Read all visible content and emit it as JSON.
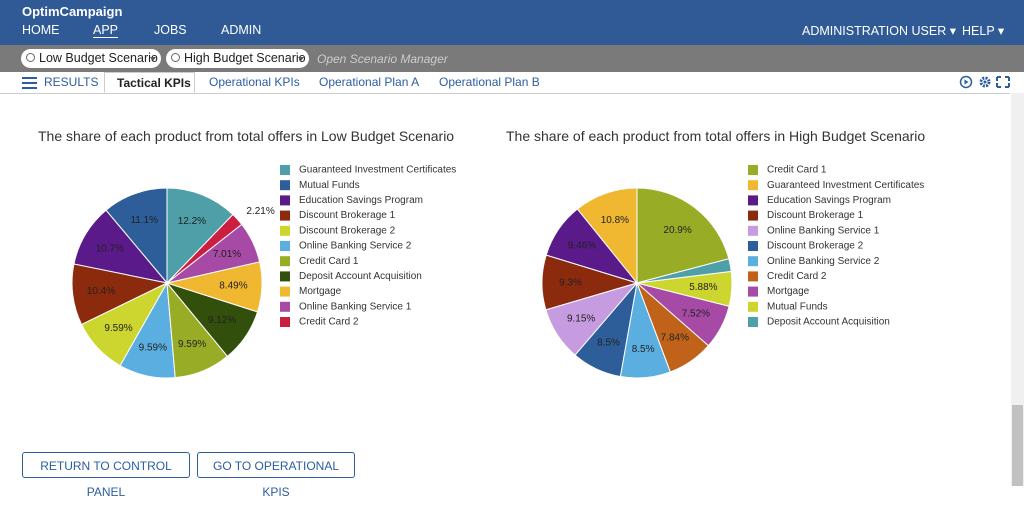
{
  "header": {
    "app_name": "OptimCampaign",
    "nav": [
      "HOME",
      "APP",
      "JOBS",
      "ADMIN"
    ],
    "user_menu": "ADMINISTRATION USER",
    "help_menu": "HELP"
  },
  "scenarios": [
    "Low Budget Scenario",
    "High Budget Scenario"
  ],
  "scenario_manager": "Open Scenario Manager",
  "tabs": {
    "results": "RESULTS",
    "items": [
      "Tactical KPIs",
      "Operational KPIs",
      "Operational Plan A",
      "Operational Plan B"
    ]
  },
  "chart_data": [
    {
      "type": "pie",
      "title": "The share of each product from total offers in Low Budget Scenario",
      "categories": [
        "Guaranteed Investment Certificates",
        "Mutual Funds",
        "Education Savings Program",
        "Discount Brokerage 1",
        "Discount Brokerage 2",
        "Online Banking Service 2",
        "Credit Card 1",
        "Deposit Account Acquisition",
        "Mortgage",
        "Online Banking Service 1",
        "Credit Card 2"
      ],
      "values": [
        12.2,
        11.1,
        10.7,
        10.4,
        9.59,
        9.59,
        9.59,
        9.12,
        8.49,
        7.01,
        2.21
      ],
      "value_labels": [
        "12.2%",
        "11.1%",
        "10.7%",
        "10.4%",
        "9.59%",
        "9.59%",
        "9.59%",
        "9.12%",
        "8.49%",
        "7.01%",
        "2.21%"
      ],
      "colors": [
        "#4e9fa8",
        "#2e5e99",
        "#5a1a8a",
        "#8c2a0e",
        "#ccd62e",
        "#5aafe0",
        "#98ad25",
        "#324f0c",
        "#f0b731",
        "#a64aa6",
        "#cc1f40"
      ],
      "legend": "right"
    },
    {
      "type": "pie",
      "title": "The share of each product from total offers in High Budget Scenario",
      "categories": [
        "Credit Card 1",
        "Guaranteed Investment Certificates",
        "Education Savings Program",
        "Discount Brokerage 1",
        "Online Banking Service 1",
        "Discount Brokerage 2",
        "Online Banking Service 2",
        "Credit Card 2",
        "Mortgage",
        "Mutual Funds",
        "Deposit Account Acquisition"
      ],
      "values": [
        20.9,
        10.8,
        9.46,
        9.3,
        9.15,
        8.5,
        8.5,
        7.84,
        7.52,
        5.88,
        2.15
      ],
      "value_labels": [
        "20.9%",
        "10.8%",
        "9.46%",
        "9.3%",
        "9.15%",
        "8.5%",
        "8.5%",
        "7.84%",
        "7.52%",
        "5.88%",
        null
      ],
      "colors": [
        "#98ad25",
        "#f0b731",
        "#5a1a8a",
        "#8c2a0e",
        "#c79be0",
        "#2e5e99",
        "#5aafe0",
        "#c0621a",
        "#a64aa6",
        "#ccd62e",
        "#4e9fa8"
      ],
      "legend": "right"
    }
  ],
  "buttons": [
    "RETURN TO CONTROL PANEL",
    "GO TO OPERATIONAL KPIS"
  ]
}
